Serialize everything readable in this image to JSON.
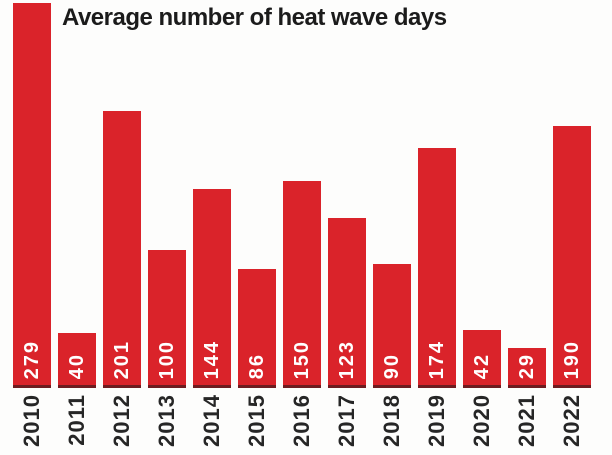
{
  "chart_data": {
    "type": "bar",
    "title": "Average number of heat wave days",
    "categories": [
      "2010",
      "2011",
      "2012",
      "2013",
      "2014",
      "2015",
      "2016",
      "2017",
      "2018",
      "2019",
      "2020",
      "2021",
      "2022"
    ],
    "values": [
      279,
      40,
      201,
      100,
      144,
      86,
      150,
      123,
      90,
      174,
      42,
      29,
      190
    ],
    "xlabel": "",
    "ylabel": "",
    "ylim": [
      0,
      282
    ],
    "grid": false,
    "legend": "none",
    "value_label_position": "inside-bar-bottom, rotated 90deg counterclockwise",
    "x_tick_label_rotation": "90deg counterclockwise",
    "colors": {
      "bar": "#da232a",
      "bar_bottom_edge": "#6e1c20",
      "value_label": "#ffffff",
      "year_label": "#262626",
      "title": "#1b1b1b",
      "background": "#fdfdfc"
    }
  }
}
